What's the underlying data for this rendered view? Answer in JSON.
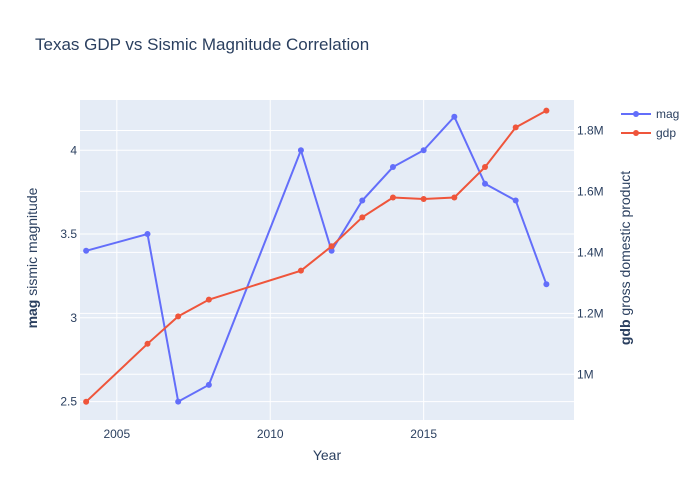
{
  "chart_data": {
    "type": "line",
    "title": "Texas GDP vs Sismic Magnitude Correlation",
    "xlabel": "Year",
    "ylabel_left": {
      "bold": "mag",
      "rest": " sismic magnitude"
    },
    "ylabel_right": {
      "bold": "gdb",
      "rest": " gross domestic product"
    },
    "xlim": [
      2003.8,
      2019.9
    ],
    "ylim_left": [
      2.39,
      4.3
    ],
    "ylim_right": [
      850000,
      1900000
    ],
    "x_ticks": [
      2005,
      2010,
      2015
    ],
    "x_tick_labels": [
      "2005",
      "2010",
      "2015"
    ],
    "y_left_ticks": [
      2.5,
      3,
      3.5,
      4
    ],
    "y_left_tick_labels": [
      "2.5",
      "3",
      "3.5",
      "4"
    ],
    "y_right_ticks": [
      1000000,
      1200000,
      1400000,
      1600000,
      1800000
    ],
    "y_right_tick_labels": [
      "1M",
      "1.2M",
      "1.4M",
      "1.6M",
      "1.8M"
    ],
    "grid": true,
    "legend_position": "top-right",
    "series": [
      {
        "name": "mag",
        "axis": "left",
        "color": "#636efa",
        "x": [
          2004,
          2006,
          2007,
          2008,
          2011,
          2012,
          2013,
          2014,
          2015,
          2016,
          2017,
          2018,
          2019
        ],
        "y": [
          3.4,
          3.5,
          2.5,
          2.6,
          4.0,
          3.4,
          3.7,
          3.9,
          4.0,
          4.2,
          3.8,
          3.7,
          3.2
        ]
      },
      {
        "name": "gdp",
        "axis": "right",
        "color": "#ef553b",
        "x": [
          2004,
          2006,
          2007,
          2008,
          2011,
          2012,
          2013,
          2014,
          2015,
          2016,
          2017,
          2018,
          2019
        ],
        "y": [
          910000,
          1100000,
          1190000,
          1245000,
          1340000,
          1420000,
          1515000,
          1580000,
          1575000,
          1580000,
          1680000,
          1810000,
          1865000
        ]
      }
    ]
  }
}
